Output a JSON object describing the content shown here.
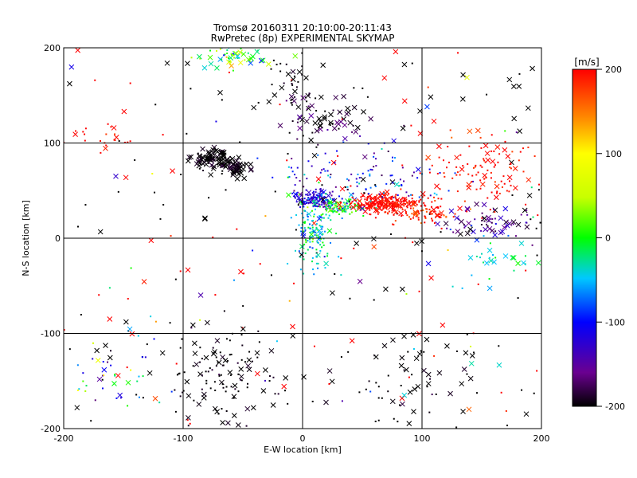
{
  "chart_data": {
    "type": "scatter",
    "title": "Tromsø 20160311 20:10:00-20:11:43",
    "subtitle": "RwPretec (8p) EXPERIMENTAL SKYMAP",
    "xlabel": "E-W location [km]",
    "ylabel": "N-S location [km]",
    "xlim": [
      -200,
      200
    ],
    "ylim": [
      -200,
      200
    ],
    "xticks": [
      -200,
      -100,
      0,
      100,
      200
    ],
    "yticks": [
      -200,
      -100,
      0,
      100,
      200
    ],
    "grid": true,
    "colorbar": {
      "label": "[m/s]",
      "range": [
        -200,
        200
      ],
      "ticks": [
        200,
        100,
        0,
        -100,
        -200
      ],
      "colormap": "rainbow"
    },
    "markers": {
      "dot": "small point",
      "cross": "x"
    },
    "clusters": [
      {
        "cx": -75,
        "cy": 83,
        "sx": 8,
        "sy": 5,
        "n": 90,
        "v": -200,
        "vs": 10,
        "crossFrac": 0.85
      },
      {
        "cx": -55,
        "cy": 73,
        "sx": 5,
        "sy": 4,
        "n": 45,
        "v": -200,
        "vs": 10,
        "crossFrac": 0.85
      },
      {
        "cx": 20,
        "cy": 125,
        "sx": 18,
        "sy": 12,
        "n": 60,
        "v": -190,
        "vs": 20,
        "crossFrac": 0.7
      },
      {
        "cx": -5,
        "cy": 160,
        "sx": 12,
        "sy": 15,
        "n": 35,
        "v": -200,
        "vs": 10,
        "crossFrac": 0.3
      },
      {
        "cx": -60,
        "cy": 190,
        "sx": 15,
        "sy": 6,
        "n": 55,
        "v": -10,
        "vs": 50,
        "crossFrac": 0.4
      },
      {
        "cx": 12,
        "cy": 40,
        "sx": 10,
        "sy": 5,
        "n": 150,
        "v": -120,
        "vs": 25,
        "crossFrac": 0.15
      },
      {
        "cx": 30,
        "cy": 32,
        "sx": 12,
        "sy": 5,
        "n": 90,
        "v": 0,
        "vs": 30,
        "crossFrac": 0.1
      },
      {
        "cx": 68,
        "cy": 37,
        "sx": 14,
        "sy": 5,
        "n": 240,
        "v": 200,
        "vs": 15,
        "crossFrac": 0.2
      },
      {
        "cx": 100,
        "cy": 28,
        "sx": 15,
        "sy": 8,
        "n": 90,
        "v": 190,
        "vs": 20,
        "crossFrac": 0.15
      },
      {
        "cx": 45,
        "cy": 65,
        "sx": 35,
        "sy": 15,
        "n": 120,
        "v": -110,
        "vs": 45,
        "crossFrac": 0.1
      },
      {
        "cx": 10,
        "cy": 5,
        "sx": 7,
        "sy": 18,
        "n": 130,
        "v": -40,
        "vs": 30,
        "crossFrac": 0.15
      },
      {
        "cx": 160,
        "cy": 15,
        "sx": 22,
        "sy": 8,
        "n": 80,
        "v": -160,
        "vs": 35,
        "crossFrac": 0.45
      },
      {
        "cx": 150,
        "cy": 70,
        "sx": 22,
        "sy": 18,
        "n": 110,
        "v": 195,
        "vs": 15,
        "crossFrac": 0.15
      },
      {
        "cx": 160,
        "cy": -25,
        "sx": 20,
        "sy": 10,
        "n": 30,
        "v": -30,
        "vs": 25,
        "crossFrac": 0.6
      },
      {
        "cx": -70,
        "cy": -145,
        "sx": 25,
        "sy": 25,
        "n": 120,
        "v": -200,
        "vs": 10,
        "crossFrac": 0.3
      },
      {
        "cx": -155,
        "cy": -145,
        "sx": 30,
        "sy": 20,
        "n": 50,
        "v": -60,
        "vs": 100,
        "crossFrac": 0.25
      },
      {
        "cx": 90,
        "cy": -155,
        "sx": 30,
        "sy": 25,
        "n": 50,
        "v": -200,
        "vs": 10,
        "crossFrac": 0.5
      },
      {
        "cx": -160,
        "cy": 105,
        "sx": 25,
        "sy": 6,
        "n": 25,
        "v": 200,
        "vs": 10,
        "crossFrac": 0.1
      }
    ],
    "scatter_background": {
      "n": 260,
      "crossFrac": 0.4,
      "blackFrac": 0.45,
      "redFrac": 0.3
    }
  }
}
